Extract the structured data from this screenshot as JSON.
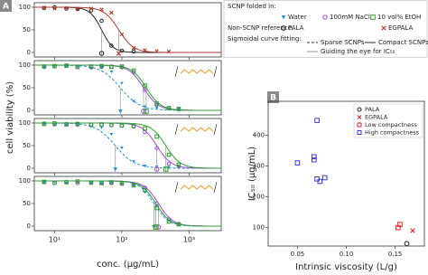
{
  "chart_data": [
    {
      "type": "line",
      "panel": "A",
      "ylabel": "cell viability (%)",
      "legend_titles": [
        "SCNP folded in:",
        "Non-SCNP reference:",
        "Sigmoidal curve fitting:"
      ],
      "fit_labels": [
        "Sparse SCNPs",
        "Compact SCNPs",
        "Guiding the eye for IC₅₀"
      ],
      "xscale": "log",
      "xlim": [
        5,
        3000
      ],
      "xticks": [
        {
          "value": 10,
          "label": "10¹"
        },
        {
          "value": 100,
          "label": "10²"
        },
        {
          "value": 1000,
          "label": "10³"
        }
      ],
      "ylim": [
        -10,
        110
      ],
      "yticks": [
        0,
        50,
        100
      ],
      "series": [
        {
          "name": "PALA",
          "color": "#222222",
          "marker": "o",
          "line": "solid",
          "x": [
            7,
            10,
            15,
            22,
            35,
            50,
            70,
            100,
            150
          ],
          "values": [
            98,
            100,
            97,
            96,
            93,
            70,
            15,
            4,
            2
          ],
          "fit": {
            "ic50": 50,
            "hill": 5
          }
        },
        {
          "name": "EGPALA",
          "color": "#b03a2e",
          "marker": "x",
          "line": "solid",
          "x": [
            7,
            10,
            15,
            22,
            35,
            50,
            70,
            100,
            150,
            220,
            330,
            500
          ],
          "values": [
            99,
            97,
            98,
            96,
            97,
            95,
            88,
            40,
            10,
            5,
            3,
            2
          ],
          "fit": {
            "ic50": 90,
            "hill": 4
          }
        }
      ]
    },
    {
      "type": "line",
      "xscale": "log",
      "xlim": [
        5,
        3000
      ],
      "xticks": [
        {
          "value": 10,
          "label": "10¹"
        },
        {
          "value": 100,
          "label": "10²"
        },
        {
          "value": 1000,
          "label": "10³"
        }
      ],
      "ylim": [
        -10,
        110
      ],
      "yticks": [
        0,
        50,
        100
      ],
      "series": [
        {
          "name": "Water",
          "color": "#1f8fd6",
          "marker": "v",
          "line": "dashed",
          "x": [
            7,
            10,
            15,
            22,
            35,
            50,
            70,
            100,
            150,
            220,
            330,
            500,
            700
          ],
          "values": [
            95,
            98,
            96,
            97,
            93,
            95,
            85,
            60,
            20,
            8,
            5,
            3,
            2
          ],
          "fit": {
            "ic50": 95,
            "hill": 3
          }
        },
        {
          "name": "100mM NaCl",
          "color": "#9a4fd8",
          "marker": "o",
          "line": "solid",
          "x": [
            7,
            10,
            15,
            22,
            35,
            50,
            70,
            100,
            150,
            220,
            330,
            500,
            700
          ],
          "values": [
            96,
            97,
            98,
            97,
            95,
            96,
            97,
            95,
            85,
            45,
            12,
            5,
            3
          ],
          "fit": {
            "ic50": 210,
            "hill": 4
          }
        },
        {
          "name": "10 vol% EtOH",
          "color": "#2ca02c",
          "marker": "s",
          "line": "solid",
          "x": [
            7,
            10,
            15,
            22,
            35,
            50,
            70,
            100,
            150,
            220,
            330,
            500,
            700
          ],
          "values": [
            97,
            98,
            99,
            96,
            97,
            98,
            96,
            97,
            88,
            55,
            15,
            5,
            3
          ],
          "fit": {
            "ic50": 230,
            "hill": 4
          }
        }
      ]
    },
    {
      "type": "line",
      "xscale": "log",
      "xlim": [
        5,
        3000
      ],
      "xticks": [
        {
          "value": 10,
          "label": "10¹"
        },
        {
          "value": 100,
          "label": "10²"
        },
        {
          "value": 1000,
          "label": "10³"
        }
      ],
      "ylim": [
        -10,
        110
      ],
      "yticks": [
        0,
        50,
        100
      ],
      "series": [
        {
          "name": "Water",
          "color": "#1f8fd6",
          "marker": "v",
          "line": "dashed",
          "x": [
            7,
            10,
            15,
            22,
            35,
            50,
            70,
            100,
            150,
            220,
            330,
            500,
            700
          ],
          "values": [
            98,
            97,
            95,
            97,
            92,
            90,
            75,
            45,
            15,
            5,
            3,
            2,
            2
          ],
          "fit": {
            "ic50": 80,
            "hill": 3
          }
        },
        {
          "name": "100mM NaCl",
          "color": "#9a4fd8",
          "marker": "o",
          "line": "solid",
          "x": [
            7,
            10,
            15,
            22,
            35,
            50,
            70,
            100,
            150,
            220,
            330,
            500,
            700
          ],
          "values": [
            99,
            97,
            98,
            96,
            97,
            96,
            95,
            94,
            92,
            80,
            45,
            10,
            4
          ],
          "fit": {
            "ic50": 330,
            "hill": 4
          }
        },
        {
          "name": "10 vol% EtOH",
          "color": "#2ca02c",
          "marker": "s",
          "line": "solid",
          "x": [
            7,
            10,
            15,
            22,
            35,
            50,
            70,
            100,
            150,
            220,
            330,
            500,
            700
          ],
          "values": [
            98,
            99,
            97,
            98,
            96,
            97,
            96,
            95,
            94,
            88,
            70,
            30,
            8
          ],
          "fit": {
            "ic50": 450,
            "hill": 4
          }
        }
      ]
    },
    {
      "type": "line",
      "xlabel": "conc. (µg/mL)",
      "xscale": "log",
      "xlim": [
        5,
        3000
      ],
      "xticks": [
        {
          "value": 10,
          "label": "10¹"
        },
        {
          "value": 100,
          "label": "10²"
        },
        {
          "value": 1000,
          "label": "10³"
        }
      ],
      "ylim": [
        -10,
        110
      ],
      "yticks": [
        0,
        50,
        100
      ],
      "series": [
        {
          "name": "Water",
          "color": "#1f8fd6",
          "marker": "v",
          "line": "dashed",
          "x": [
            7,
            10,
            15,
            22,
            35,
            50,
            70,
            100,
            150,
            220,
            330,
            500,
            700
          ],
          "values": [
            96,
            98,
            95,
            97,
            96,
            94,
            95,
            93,
            90,
            75,
            45,
            12,
            5
          ],
          "fit": {
            "ic50": 300,
            "hill": 4
          }
        },
        {
          "name": "100mM NaCl",
          "color": "#9a4fd8",
          "marker": "o",
          "line": "solid",
          "x": [
            7,
            10,
            15,
            22,
            35,
            50,
            70,
            100,
            150,
            220,
            330,
            500,
            700
          ],
          "values": [
            97,
            96,
            98,
            95,
            97,
            96,
            95,
            96,
            92,
            85,
            50,
            15,
            5
          ],
          "fit": {
            "ic50": 350,
            "hill": 4
          }
        },
        {
          "name": "10 vol% EtOH",
          "color": "#2ca02c",
          "marker": "s",
          "line": "solid",
          "x": [
            7,
            10,
            15,
            22,
            35,
            50,
            70,
            100,
            150,
            220,
            330,
            500,
            700
          ],
          "values": [
            98,
            96,
            97,
            99,
            96,
            95,
            97,
            94,
            90,
            80,
            40,
            10,
            4
          ],
          "fit": {
            "ic50": 320,
            "hill": 4
          }
        }
      ]
    },
    {
      "type": "scatter",
      "panel": "B",
      "xlabel": "Intrinsic viscosity (L/g)",
      "ylabel": "IC₅₀ (µg/mL)",
      "xlim": [
        0.02,
        0.18
      ],
      "xticks": [
        0.05,
        {
          "value": 0.1,
          "label": "0.10"
        },
        0.15
      ],
      "ylim": [
        40,
        510
      ],
      "yticks": [
        100,
        200,
        300,
        400
      ],
      "series": [
        {
          "name": "PALA",
          "color": "#222222",
          "marker": "o",
          "x": [
            0.162
          ],
          "values": [
            48
          ]
        },
        {
          "name": "EGPALA",
          "color": "#d62728",
          "marker": "x",
          "x": [
            0.168
          ],
          "values": [
            90
          ]
        },
        {
          "name": "Low compactness",
          "color": "#d62728",
          "marker": "s",
          "x": [
            0.153,
            0.155
          ],
          "values": [
            100,
            110
          ]
        },
        {
          "name": "High compactness",
          "color": "#3b3bd6",
          "marker": "s",
          "x": [
            0.05,
            0.067,
            0.067,
            0.07,
            0.07,
            0.073,
            0.078
          ],
          "values": [
            310,
            320,
            330,
            448,
            258,
            250,
            262
          ]
        }
      ]
    }
  ]
}
